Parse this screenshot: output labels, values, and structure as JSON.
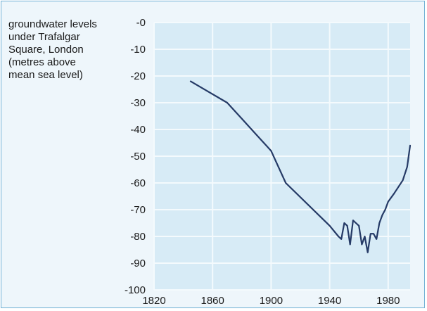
{
  "chart_data": {
    "type": "line",
    "title": "groundwater levels under Trafalgar Square, London (metres above mean sea level)",
    "xlabel": "",
    "ylabel": "",
    "xlim": [
      1820,
      1995
    ],
    "ylim": [
      -100,
      0
    ],
    "x_ticks": [
      1820,
      1860,
      1900,
      1940,
      1980
    ],
    "y_ticks": [
      0,
      -10,
      -20,
      -30,
      -40,
      -50,
      -60,
      -70,
      -80,
      -90,
      -100
    ],
    "y_tick_labels": [
      "-0",
      "-10",
      "-20",
      "-30",
      "-40",
      "-50",
      "-60",
      "-70",
      "-80",
      "-90",
      "-100"
    ],
    "grid": true,
    "series": [
      {
        "x": [
          1845,
          1870,
          1880,
          1890,
          1900,
          1910,
          1940,
          1946,
          1948,
          1950,
          1952,
          1954,
          1956,
          1958,
          1960,
          1962,
          1964,
          1966,
          1968,
          1970,
          1972,
          1974,
          1976,
          1978,
          1980,
          1984,
          1990,
          1993,
          1995
        ],
        "y": [
          -22,
          -30,
          -36,
          -42,
          -48,
          -60,
          -76,
          -80,
          -81,
          -75,
          -76,
          -83,
          -74,
          -75,
          -76,
          -83,
          -80,
          -86,
          -79,
          -79,
          -81,
          -75,
          -72,
          -70,
          -67,
          -64,
          -59,
          -54,
          -46
        ]
      }
    ],
    "colors": {
      "line": "#253a66",
      "plot_bg": "#d7ebf6",
      "grid": "#f4fafd",
      "frame": "#6fb0d4"
    }
  }
}
